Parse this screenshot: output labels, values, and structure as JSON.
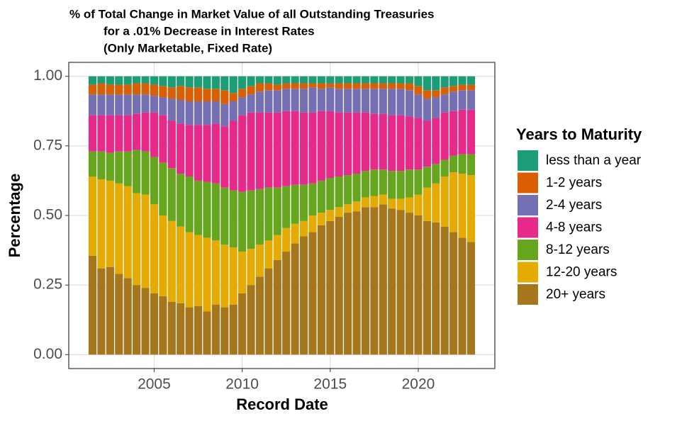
{
  "chart_data": {
    "type": "stacked_bar",
    "title": [
      "% of Total Change in Market Value of all Outstanding Treasuries",
      "for a .01% Decrease in Interest Rates",
      "(Only Marketable, Fixed Rate)"
    ],
    "x_label": "Record Date",
    "y_label": "Percentage",
    "legend_title": "Years to Maturity",
    "legend_position": "right",
    "grid": true,
    "x": [
      2001.5,
      2002,
      2002.5,
      2003,
      2003.5,
      2004,
      2004.5,
      2005,
      2005.5,
      2006,
      2006.5,
      2007,
      2007.5,
      2008,
      2008.5,
      2009,
      2009.5,
      2010,
      2010.5,
      2011,
      2011.5,
      2012,
      2012.5,
      2013,
      2013.5,
      2014,
      2014.5,
      2015,
      2015.5,
      2016,
      2016.5,
      2017,
      2017.5,
      2018,
      2018.5,
      2019,
      2019.5,
      2020,
      2020.5,
      2021,
      2021.5,
      2022,
      2022.5,
      2023
    ],
    "xlim": [
      2000.15,
      2024.35
    ],
    "xticks": [
      2005,
      2010,
      2015,
      2020
    ],
    "ylim": [
      -0.05,
      1.05
    ],
    "yticks": [
      {
        "value": 0,
        "label": "0.00"
      },
      {
        "value": 0.25,
        "label": "0.25"
      },
      {
        "value": 0.5,
        "label": "0.50"
      },
      {
        "value": 0.75,
        "label": "0.75"
      },
      {
        "value": 1,
        "label": "1.00"
      }
    ],
    "series": [
      {
        "name": "less than a year",
        "color": "#1b9e77",
        "values": [
          0.03,
          0.025,
          0.03,
          0.03,
          0.03,
          0.025,
          0.025,
          0.03,
          0.035,
          0.04,
          0.035,
          0.04,
          0.04,
          0.045,
          0.045,
          0.05,
          0.06,
          0.045,
          0.035,
          0.025,
          0.025,
          0.03,
          0.025,
          0.025,
          0.025,
          0.025,
          0.025,
          0.025,
          0.025,
          0.025,
          0.025,
          0.025,
          0.025,
          0.025,
          0.025,
          0.025,
          0.025,
          0.035,
          0.05,
          0.05,
          0.04,
          0.035,
          0.03,
          0.03
        ]
      },
      {
        "name": "1-2 years",
        "color": "#d95f02",
        "values": [
          0.035,
          0.04,
          0.035,
          0.035,
          0.035,
          0.04,
          0.04,
          0.04,
          0.04,
          0.04,
          0.05,
          0.05,
          0.05,
          0.045,
          0.045,
          0.05,
          0.03,
          0.03,
          0.03,
          0.03,
          0.025,
          0.02,
          0.02,
          0.02,
          0.02,
          0.015,
          0.02,
          0.015,
          0.02,
          0.02,
          0.02,
          0.02,
          0.02,
          0.02,
          0.02,
          0.02,
          0.025,
          0.03,
          0.03,
          0.025,
          0.025,
          0.02,
          0.02,
          0.02
        ]
      },
      {
        "name": "2-4 years",
        "color": "#7570b3",
        "values": [
          0.075,
          0.075,
          0.075,
          0.075,
          0.075,
          0.07,
          0.065,
          0.06,
          0.065,
          0.08,
          0.085,
          0.085,
          0.085,
          0.085,
          0.08,
          0.08,
          0.07,
          0.065,
          0.065,
          0.075,
          0.08,
          0.08,
          0.08,
          0.08,
          0.085,
          0.09,
          0.08,
          0.085,
          0.085,
          0.085,
          0.085,
          0.085,
          0.09,
          0.09,
          0.095,
          0.095,
          0.095,
          0.085,
          0.08,
          0.075,
          0.065,
          0.07,
          0.07,
          0.07
        ]
      },
      {
        "name": "4-8 years",
        "color": "#e7298a",
        "values": [
          0.13,
          0.13,
          0.135,
          0.13,
          0.13,
          0.13,
          0.14,
          0.16,
          0.17,
          0.17,
          0.18,
          0.185,
          0.2,
          0.205,
          0.215,
          0.22,
          0.25,
          0.275,
          0.28,
          0.275,
          0.27,
          0.27,
          0.27,
          0.265,
          0.26,
          0.255,
          0.25,
          0.24,
          0.23,
          0.225,
          0.22,
          0.21,
          0.2,
          0.2,
          0.2,
          0.2,
          0.19,
          0.185,
          0.165,
          0.165,
          0.17,
          0.16,
          0.16,
          0.16
        ]
      },
      {
        "name": "8-12 years",
        "color": "#66a61e",
        "values": [
          0.09,
          0.1,
          0.1,
          0.115,
          0.125,
          0.155,
          0.155,
          0.17,
          0.19,
          0.19,
          0.19,
          0.2,
          0.195,
          0.2,
          0.205,
          0.205,
          0.205,
          0.215,
          0.21,
          0.2,
          0.19,
          0.17,
          0.15,
          0.14,
          0.13,
          0.115,
          0.115,
          0.115,
          0.11,
          0.105,
          0.1,
          0.095,
          0.095,
          0.09,
          0.1,
          0.1,
          0.1,
          0.09,
          0.075,
          0.07,
          0.06,
          0.06,
          0.07,
          0.075
        ]
      },
      {
        "name": "12-20 years",
        "color": "#e6ab02",
        "values": [
          0.285,
          0.32,
          0.31,
          0.325,
          0.33,
          0.33,
          0.335,
          0.32,
          0.29,
          0.29,
          0.275,
          0.27,
          0.255,
          0.265,
          0.23,
          0.225,
          0.205,
          0.15,
          0.13,
          0.115,
          0.1,
          0.09,
          0.085,
          0.07,
          0.055,
          0.06,
          0.045,
          0.04,
          0.035,
          0.03,
          0.035,
          0.035,
          0.04,
          0.035,
          0.035,
          0.04,
          0.055,
          0.075,
          0.12,
          0.14,
          0.18,
          0.215,
          0.23,
          0.24
        ]
      },
      {
        "name": "20+ years",
        "color": "#a6761d",
        "values": [
          0.355,
          0.31,
          0.315,
          0.29,
          0.275,
          0.25,
          0.24,
          0.22,
          0.21,
          0.19,
          0.185,
          0.17,
          0.175,
          0.155,
          0.18,
          0.17,
          0.18,
          0.22,
          0.25,
          0.28,
          0.31,
          0.34,
          0.37,
          0.4,
          0.425,
          0.44,
          0.465,
          0.48,
          0.495,
          0.51,
          0.515,
          0.53,
          0.53,
          0.54,
          0.525,
          0.52,
          0.51,
          0.5,
          0.48,
          0.475,
          0.46,
          0.44,
          0.42,
          0.405
        ]
      }
    ]
  }
}
